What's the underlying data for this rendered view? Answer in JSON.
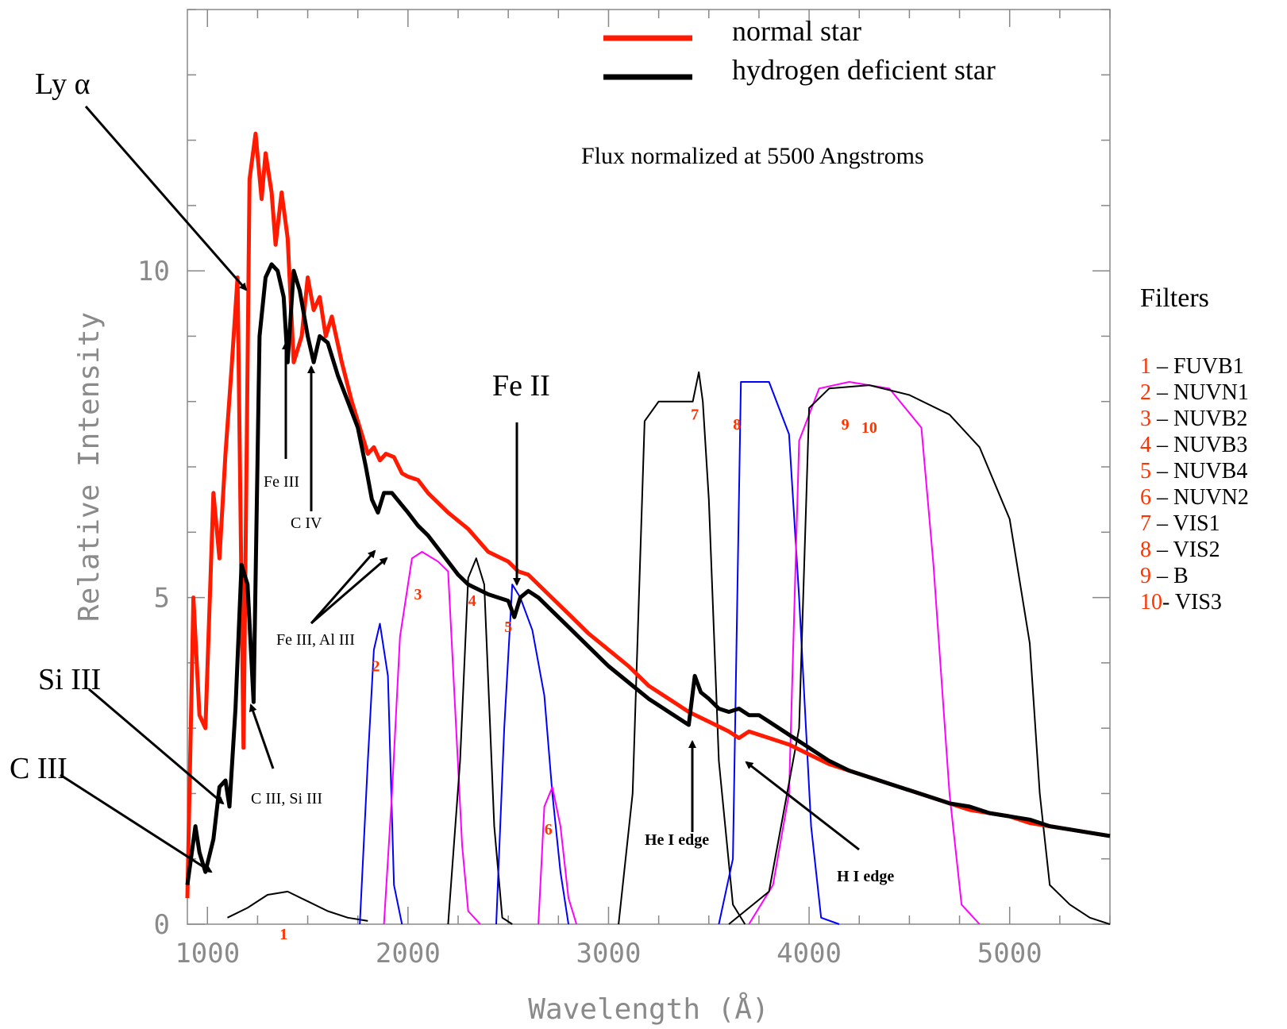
{
  "chart_data": {
    "type": "line",
    "title": "",
    "xlabel": "Wavelength (Å)",
    "ylabel": "Relative Intensity",
    "xlim": [
      900,
      5500
    ],
    "ylim": [
      0,
      14
    ],
    "x_ticks": [
      1000,
      2000,
      3000,
      4000,
      5000
    ],
    "x_tick_labels": [
      "1000",
      "2000",
      "3000",
      "4000",
      "5000"
    ],
    "y_ticks": [
      0,
      5,
      10
    ],
    "y_tick_labels": [
      "0",
      "5",
      "10"
    ],
    "grid": false,
    "legend_position": "top-right",
    "annotation_text": "Flux normalized at 5500 Angstroms",
    "series": [
      {
        "name": "normal star",
        "color": "#ff1a00",
        "points": [
          [
            900,
            0.4
          ],
          [
            930,
            5.0
          ],
          [
            960,
            3.2
          ],
          [
            990,
            3.0
          ],
          [
            1030,
            6.6
          ],
          [
            1060,
            5.6
          ],
          [
            1090,
            7.2
          ],
          [
            1120,
            8.5
          ],
          [
            1150,
            9.9
          ],
          [
            1180,
            2.7
          ],
          [
            1210,
            11.4
          ],
          [
            1240,
            12.1
          ],
          [
            1270,
            11.1
          ],
          [
            1290,
            11.8
          ],
          [
            1320,
            11.2
          ],
          [
            1340,
            10.4
          ],
          [
            1370,
            11.2
          ],
          [
            1400,
            10.5
          ],
          [
            1430,
            8.6
          ],
          [
            1470,
            9.0
          ],
          [
            1500,
            9.9
          ],
          [
            1530,
            9.4
          ],
          [
            1560,
            9.6
          ],
          [
            1590,
            9.0
          ],
          [
            1620,
            9.3
          ],
          [
            1670,
            8.6
          ],
          [
            1720,
            8.0
          ],
          [
            1760,
            7.6
          ],
          [
            1800,
            7.2
          ],
          [
            1830,
            7.3
          ],
          [
            1860,
            7.1
          ],
          [
            1890,
            7.2
          ],
          [
            1930,
            7.15
          ],
          [
            1970,
            6.9
          ],
          [
            2000,
            6.85
          ],
          [
            2050,
            6.8
          ],
          [
            2100,
            6.6
          ],
          [
            2150,
            6.45
          ],
          [
            2200,
            6.3
          ],
          [
            2300,
            6.05
          ],
          [
            2400,
            5.7
          ],
          [
            2500,
            5.55
          ],
          [
            2550,
            5.4
          ],
          [
            2600,
            5.35
          ],
          [
            2700,
            5.05
          ],
          [
            2800,
            4.75
          ],
          [
            2900,
            4.45
          ],
          [
            3000,
            4.2
          ],
          [
            3100,
            3.95
          ],
          [
            3200,
            3.65
          ],
          [
            3300,
            3.45
          ],
          [
            3400,
            3.25
          ],
          [
            3500,
            3.1
          ],
          [
            3600,
            2.95
          ],
          [
            3650,
            2.85
          ],
          [
            3700,
            2.95
          ],
          [
            3750,
            2.9
          ],
          [
            3800,
            2.85
          ],
          [
            3900,
            2.75
          ],
          [
            4000,
            2.6
          ],
          [
            4100,
            2.45
          ],
          [
            4200,
            2.35
          ],
          [
            4300,
            2.25
          ],
          [
            4400,
            2.15
          ],
          [
            4500,
            2.05
          ],
          [
            4600,
            1.95
          ],
          [
            4700,
            1.85
          ],
          [
            4800,
            1.75
          ],
          [
            4900,
            1.7
          ],
          [
            5000,
            1.65
          ],
          [
            5100,
            1.55
          ],
          [
            5200,
            1.5
          ],
          [
            5300,
            1.45
          ],
          [
            5400,
            1.4
          ],
          [
            5500,
            1.35
          ]
        ]
      },
      {
        "name": "hydrogen deficient star",
        "color": "#000000",
        "points": [
          [
            900,
            0.6
          ],
          [
            940,
            1.5
          ],
          [
            960,
            1.1
          ],
          [
            990,
            0.8
          ],
          [
            1030,
            1.3
          ],
          [
            1060,
            2.1
          ],
          [
            1090,
            2.2
          ],
          [
            1110,
            1.8
          ],
          [
            1140,
            3.3
          ],
          [
            1170,
            5.5
          ],
          [
            1200,
            5.2
          ],
          [
            1230,
            3.4
          ],
          [
            1260,
            9.0
          ],
          [
            1290,
            9.9
          ],
          [
            1320,
            10.1
          ],
          [
            1350,
            10.0
          ],
          [
            1380,
            9.6
          ],
          [
            1400,
            8.6
          ],
          [
            1430,
            10.0
          ],
          [
            1460,
            9.7
          ],
          [
            1500,
            9.0
          ],
          [
            1530,
            8.6
          ],
          [
            1560,
            9.0
          ],
          [
            1600,
            8.9
          ],
          [
            1650,
            8.4
          ],
          [
            1700,
            8.0
          ],
          [
            1750,
            7.6
          ],
          [
            1790,
            7.0
          ],
          [
            1820,
            6.5
          ],
          [
            1850,
            6.3
          ],
          [
            1880,
            6.6
          ],
          [
            1920,
            6.6
          ],
          [
            1960,
            6.45
          ],
          [
            2000,
            6.3
          ],
          [
            2050,
            6.1
          ],
          [
            2100,
            5.95
          ],
          [
            2150,
            5.75
          ],
          [
            2200,
            5.55
          ],
          [
            2250,
            5.35
          ],
          [
            2300,
            5.2
          ],
          [
            2400,
            5.05
          ],
          [
            2450,
            5.0
          ],
          [
            2500,
            4.95
          ],
          [
            2530,
            4.7
          ],
          [
            2560,
            5.0
          ],
          [
            2600,
            5.1
          ],
          [
            2650,
            5.0
          ],
          [
            2700,
            4.85
          ],
          [
            2800,
            4.55
          ],
          [
            2900,
            4.25
          ],
          [
            3000,
            3.95
          ],
          [
            3100,
            3.7
          ],
          [
            3200,
            3.45
          ],
          [
            3300,
            3.25
          ],
          [
            3400,
            3.05
          ],
          [
            3430,
            3.8
          ],
          [
            3460,
            3.55
          ],
          [
            3500,
            3.45
          ],
          [
            3550,
            3.3
          ],
          [
            3600,
            3.25
          ],
          [
            3650,
            3.3
          ],
          [
            3700,
            3.2
          ],
          [
            3750,
            3.2
          ],
          [
            3800,
            3.1
          ],
          [
            3900,
            2.9
          ],
          [
            4000,
            2.7
          ],
          [
            4100,
            2.5
          ],
          [
            4200,
            2.35
          ],
          [
            4300,
            2.25
          ],
          [
            4400,
            2.15
          ],
          [
            4500,
            2.05
          ],
          [
            4600,
            1.95
          ],
          [
            4700,
            1.85
          ],
          [
            4800,
            1.8
          ],
          [
            4900,
            1.7
          ],
          [
            5000,
            1.65
          ],
          [
            5100,
            1.6
          ],
          [
            5200,
            1.5
          ],
          [
            5300,
            1.45
          ],
          [
            5400,
            1.4
          ],
          [
            5500,
            1.35
          ]
        ]
      }
    ],
    "filter_curves": [
      {
        "label": "1",
        "color": "#000000",
        "points": [
          [
            1100,
            0.1
          ],
          [
            1200,
            0.25
          ],
          [
            1300,
            0.45
          ],
          [
            1400,
            0.5
          ],
          [
            1500,
            0.35
          ],
          [
            1600,
            0.2
          ],
          [
            1700,
            0.1
          ],
          [
            1800,
            0.05
          ]
        ]
      },
      {
        "label": "2",
        "color": "#0000ff",
        "points": [
          [
            1760,
            0.0
          ],
          [
            1800,
            2.5
          ],
          [
            1830,
            4.2
          ],
          [
            1860,
            4.6
          ],
          [
            1900,
            3.8
          ],
          [
            1930,
            0.6
          ],
          [
            1970,
            0.0
          ]
        ]
      },
      {
        "label": "3",
        "color": "#ff00ff",
        "points": [
          [
            1880,
            0.0
          ],
          [
            1920,
            2.0
          ],
          [
            1960,
            4.4
          ],
          [
            2020,
            5.6
          ],
          [
            2070,
            5.7
          ],
          [
            2150,
            5.55
          ],
          [
            2200,
            5.4
          ],
          [
            2240,
            3.0
          ],
          [
            2270,
            1.2
          ],
          [
            2300,
            0.2
          ],
          [
            2360,
            0.0
          ]
        ]
      },
      {
        "label": "4",
        "color": "#000000",
        "points": [
          [
            2200,
            0.0
          ],
          [
            2260,
            2.5
          ],
          [
            2300,
            5.3
          ],
          [
            2340,
            5.6
          ],
          [
            2380,
            5.2
          ],
          [
            2430,
            1.5
          ],
          [
            2470,
            0.1
          ],
          [
            2520,
            0.0
          ]
        ]
      },
      {
        "label": "5",
        "color": "#0000ff",
        "points": [
          [
            2440,
            0.0
          ],
          [
            2480,
            3.0
          ],
          [
            2520,
            5.2
          ],
          [
            2560,
            5.0
          ],
          [
            2620,
            4.5
          ],
          [
            2680,
            3.5
          ],
          [
            2720,
            2.0
          ],
          [
            2760,
            0.8
          ],
          [
            2800,
            0.0
          ]
        ]
      },
      {
        "label": "6",
        "color": "#ff00ff",
        "points": [
          [
            2650,
            0.0
          ],
          [
            2680,
            1.8
          ],
          [
            2720,
            2.1
          ],
          [
            2760,
            1.5
          ],
          [
            2800,
            0.4
          ],
          [
            2840,
            0.0
          ]
        ]
      },
      {
        "label": "7",
        "color": "#000000",
        "points": [
          [
            3050,
            0.0
          ],
          [
            3120,
            2.0
          ],
          [
            3180,
            7.7
          ],
          [
            3250,
            8.0
          ],
          [
            3350,
            8.0
          ],
          [
            3420,
            8.0
          ],
          [
            3450,
            8.45
          ],
          [
            3470,
            8.0
          ],
          [
            3500,
            6.5
          ],
          [
            3550,
            2.5
          ],
          [
            3620,
            0.3
          ],
          [
            3680,
            0.0
          ]
        ]
      },
      {
        "label": "8",
        "color": "#0000ff",
        "points": [
          [
            3550,
            0.0
          ],
          [
            3620,
            1.0
          ],
          [
            3660,
            8.3
          ],
          [
            3800,
            8.3
          ],
          [
            3900,
            7.5
          ],
          [
            3950,
            5.0
          ],
          [
            4010,
            1.5
          ],
          [
            4060,
            0.1
          ],
          [
            4150,
            0.0
          ]
        ]
      },
      {
        "label": "9",
        "color": "#ff00ff",
        "points": [
          [
            3700,
            0.0
          ],
          [
            3820,
            0.6
          ],
          [
            3900,
            2.0
          ],
          [
            3950,
            7.4
          ],
          [
            4050,
            8.2
          ],
          [
            4200,
            8.3
          ],
          [
            4400,
            8.2
          ],
          [
            4560,
            7.6
          ],
          [
            4620,
            5.5
          ],
          [
            4700,
            2.0
          ],
          [
            4760,
            0.3
          ],
          [
            4850,
            0.0
          ]
        ]
      },
      {
        "label": "10",
        "color": "#000000",
        "points": [
          [
            3600,
            0.0
          ],
          [
            3800,
            0.5
          ],
          [
            3950,
            3.0
          ],
          [
            4000,
            7.9
          ],
          [
            4100,
            8.2
          ],
          [
            4300,
            8.25
          ],
          [
            4500,
            8.1
          ],
          [
            4700,
            7.8
          ],
          [
            4850,
            7.3
          ],
          [
            5000,
            6.2
          ],
          [
            5100,
            4.3
          ],
          [
            5150,
            2.0
          ],
          [
            5200,
            0.6
          ],
          [
            5300,
            0.3
          ],
          [
            5400,
            0.1
          ],
          [
            5500,
            0.0
          ]
        ]
      }
    ],
    "annotations": [
      {
        "text": "Ly α",
        "target_x": 1160,
        "target_y": 10.0
      },
      {
        "text": "Fe III",
        "target_x": 1350,
        "target_y": 9.0
      },
      {
        "text": "C IV",
        "target_x": 1480,
        "target_y": 8.6
      },
      {
        "text": "Fe II",
        "target_x": 2520,
        "target_y": 5.0
      },
      {
        "text": "Fe III, Al III",
        "target_x": 1870,
        "target_y": 6.3
      },
      {
        "text": "Si III",
        "target_x": 1060,
        "target_y": 2.0
      },
      {
        "text": "C III",
        "target_x": 1000,
        "target_y": 0.9
      },
      {
        "text": "C III, Si III",
        "target_x": 1220,
        "target_y": 3.6
      },
      {
        "text": "He I edge",
        "target_x": 3420,
        "target_y": 2.9
      },
      {
        "text": "H I edge",
        "target_x": 3680,
        "target_y": 2.7
      }
    ]
  },
  "legend": {
    "items": [
      {
        "label": "normal star",
        "color": "#ff1a00"
      },
      {
        "label": "hydrogen deficient star",
        "color": "#000000"
      }
    ]
  },
  "filters_panel": {
    "heading": "Filters",
    "items": [
      {
        "num": "1",
        "sep": " – ",
        "name": "FUVB1"
      },
      {
        "num": "2",
        "sep": " – ",
        "name": "NUVN1"
      },
      {
        "num": "3",
        "sep": " – ",
        "name": "NUVB2"
      },
      {
        "num": "4",
        "sep": " – ",
        "name": "NUVB3"
      },
      {
        "num": "5",
        "sep": " – ",
        "name": "NUVB4"
      },
      {
        "num": "6",
        "sep": " – ",
        "name": "NUVN2"
      },
      {
        "num": "7",
        "sep": " – ",
        "name": "VIS1"
      },
      {
        "num": "8",
        "sep": " – ",
        "name": "VIS2"
      },
      {
        "num": "9",
        "sep": " – ",
        "name": "B"
      },
      {
        "num": "10",
        "sep": "- ",
        "name": "VIS3"
      }
    ]
  },
  "colors": {
    "filter_number": "#ff3300",
    "axis": "#8a8a8a",
    "frame": "#888888"
  }
}
